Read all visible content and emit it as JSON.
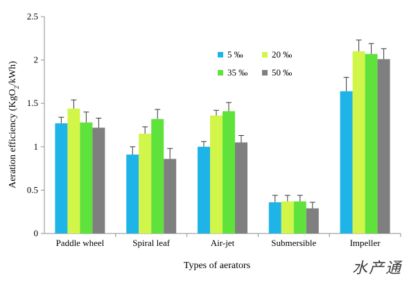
{
  "chart_data": {
    "type": "bar",
    "xlabel": "Types of aerators",
    "ylabel_main": "Aeration efficiency (KgO",
    "ylabel_sub": "2",
    "ylabel_tail": "/kWh)",
    "ylim": [
      0,
      2.5
    ],
    "yticks": [
      "0",
      "0.5",
      "1",
      "1.5",
      "2",
      "2.5"
    ],
    "categories": [
      "Paddle wheel",
      "Spiral leaf",
      "Air-jet",
      "Submersible",
      "Impeller"
    ],
    "series": [
      {
        "name": "5 ‰",
        "color": "#1fb4e8",
        "values": [
          1.27,
          0.91,
          1.0,
          0.36,
          1.64
        ],
        "errors": [
          0.07,
          0.09,
          0.06,
          0.08,
          0.16
        ]
      },
      {
        "name": "20 ‰",
        "color": "#d2f54a",
        "values": [
          1.44,
          1.15,
          1.36,
          0.37,
          2.1
        ],
        "errors": [
          0.1,
          0.08,
          0.06,
          0.07,
          0.13
        ]
      },
      {
        "name": "35 ‰",
        "color": "#5fe33c",
        "values": [
          1.28,
          1.32,
          1.41,
          0.37,
          2.07
        ],
        "errors": [
          0.12,
          0.11,
          0.1,
          0.07,
          0.12
        ]
      },
      {
        "name": "50 ‰",
        "color": "#7f7f7f",
        "values": [
          1.22,
          0.86,
          1.05,
          0.29,
          2.01
        ],
        "errors": [
          0.11,
          0.12,
          0.08,
          0.07,
          0.12
        ]
      }
    ],
    "legend": "top-right"
  },
  "watermark": "水产通"
}
